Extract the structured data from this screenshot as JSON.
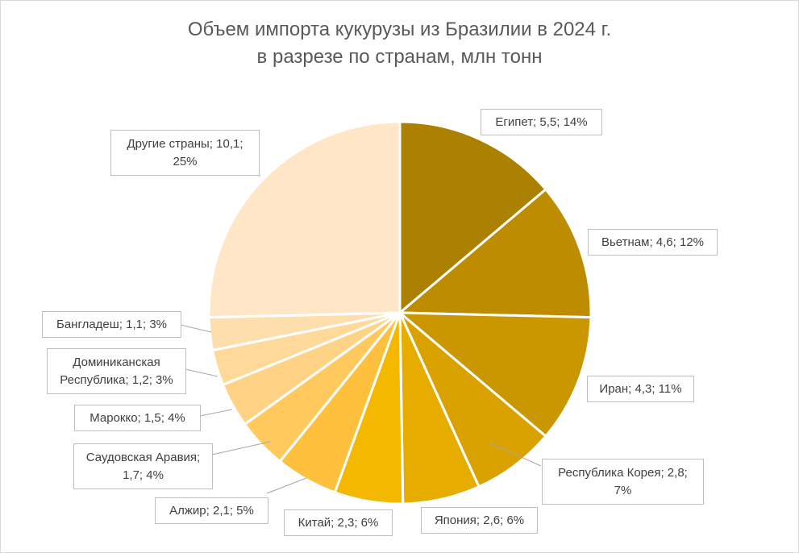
{
  "chart_data": {
    "type": "pie",
    "title_lines": [
      "Объем импорта кукурузы из Бразилии в 2024 г.",
      "в разрезе по странам, млн тонн"
    ],
    "slices": [
      {
        "name": "Египет",
        "value": 5.5,
        "percent": 14,
        "color": "#ac8000",
        "label_lines": [
          "Египет; 5,5; 14%"
        ]
      },
      {
        "name": "Вьетнам",
        "value": 4.6,
        "percent": 12,
        "color": "#bd8c00",
        "label_lines": [
          "Вьетнам; 4,6; 12%"
        ]
      },
      {
        "name": "Иран",
        "value": 4.3,
        "percent": 11,
        "color": "#cb9700",
        "label_lines": [
          "Иран; 4,3; 11%"
        ]
      },
      {
        "name": "Республика Корея",
        "value": 2.8,
        "percent": 7,
        "color": "#d9a200",
        "label_lines": [
          "Республика Корея; 2,8;",
          "7%"
        ]
      },
      {
        "name": "Япония",
        "value": 2.6,
        "percent": 6,
        "color": "#e6ad00",
        "label_lines": [
          "Япония; 2,6; 6%"
        ]
      },
      {
        "name": "Китай",
        "value": 2.3,
        "percent": 6,
        "color": "#f5b800",
        "label_lines": [
          "Китай; 2,3; 6%"
        ]
      },
      {
        "name": "Алжир",
        "value": 2.1,
        "percent": 5,
        "color": "#ffc03e",
        "label_lines": [
          "Алжир; 2,1; 5%"
        ]
      },
      {
        "name": "Саудовская Аравия",
        "value": 1.7,
        "percent": 4,
        "color": "#ffc95e",
        "label_lines": [
          "Саудовская Аравия;",
          "1,7; 4%"
        ]
      },
      {
        "name": "Марокко",
        "value": 1.5,
        "percent": 4,
        "color": "#ffd386",
        "label_lines": [
          "Марокко; 1,5; 4%"
        ]
      },
      {
        "name": "Доминиканская Республика",
        "value": 1.2,
        "percent": 3,
        "color": "#ffd99a",
        "label_lines": [
          "Доминиканская",
          "Республика; 1,2; 3%"
        ]
      },
      {
        "name": "Бангладеш",
        "value": 1.1,
        "percent": 3,
        "color": "#ffdead",
        "label_lines": [
          "Бангладеш; 1,1; 3%"
        ]
      },
      {
        "name": "Другие страны",
        "value": 10.1,
        "percent": 25,
        "color": "#fee6c6",
        "label_lines": [
          "Другие страны; 10,1;",
          "25%"
        ]
      }
    ]
  }
}
